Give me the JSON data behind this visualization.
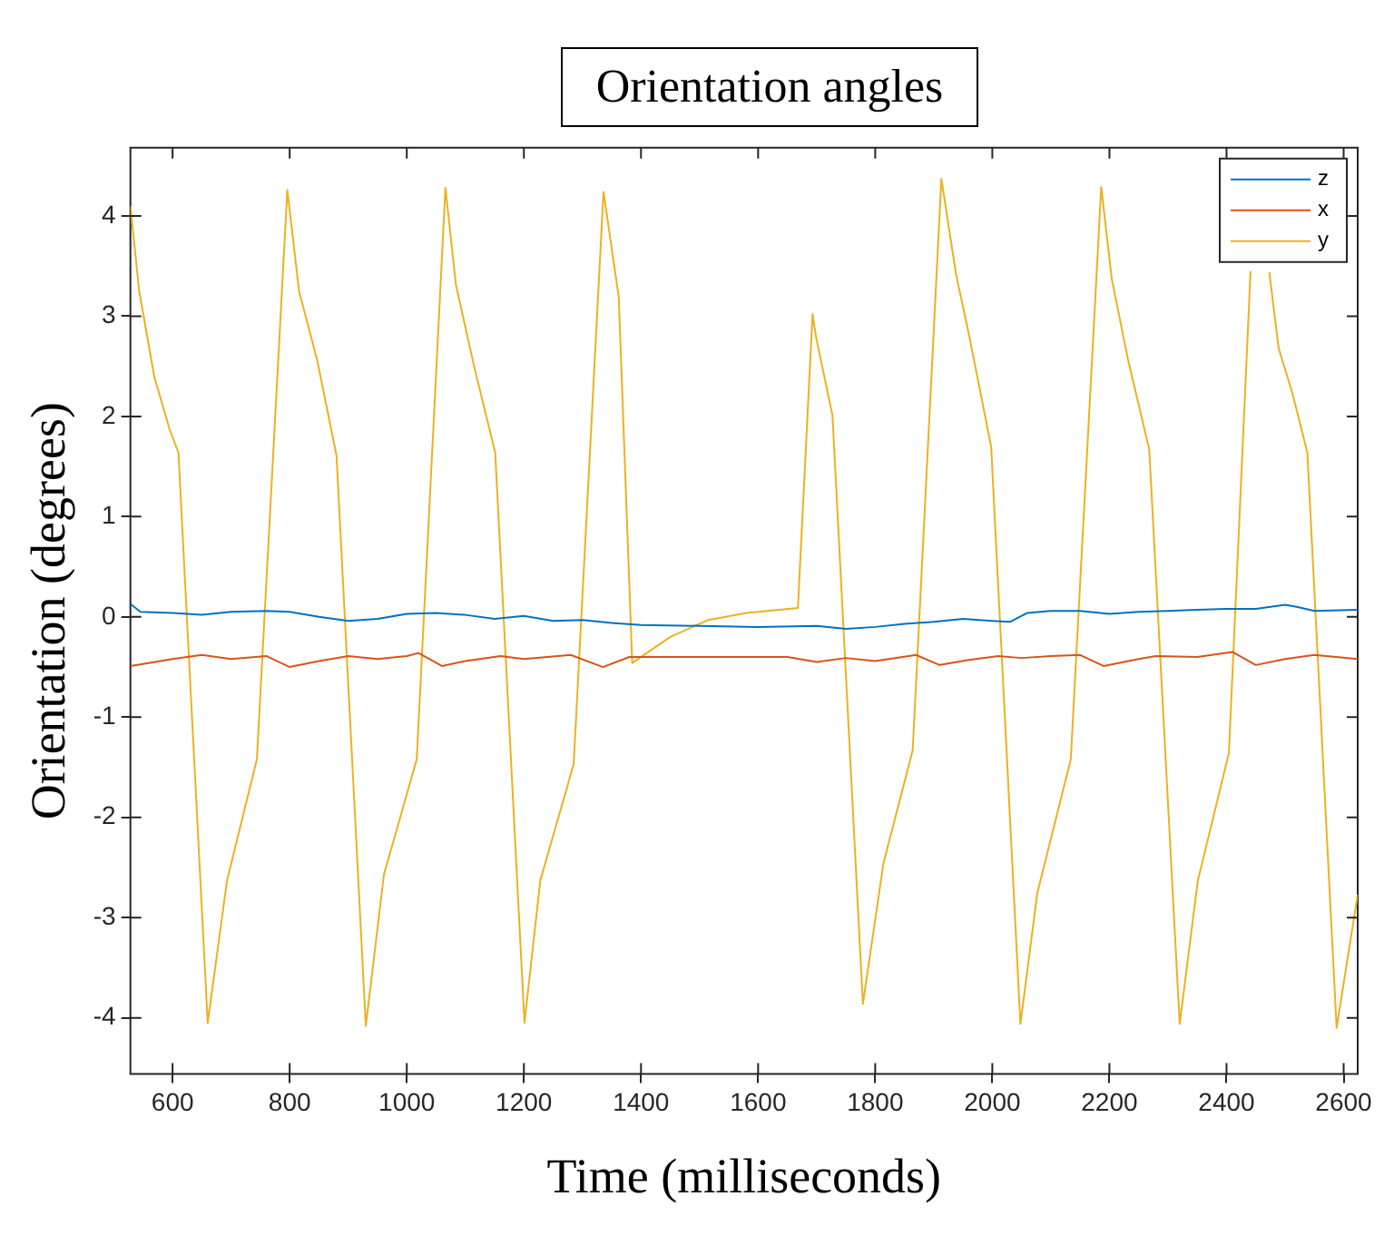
{
  "chart_data": {
    "type": "line",
    "title": "Orientation angles",
    "xlabel": "Time (milliseconds)",
    "ylabel": "Orientation (degrees)",
    "xlim": [
      528,
      2624
    ],
    "xticks": [
      600,
      800,
      1000,
      1200,
      1400,
      1600,
      1800,
      2000,
      2200,
      2400,
      2600
    ],
    "ylim": [
      -4.56,
      4.68
    ],
    "yticks": [
      -4,
      -3,
      -2,
      -1,
      0,
      1,
      2,
      3,
      4
    ],
    "grid": false,
    "legend": "top right",
    "marker": "none",
    "line_style": "solid",
    "series": [
      {
        "name": "z",
        "color": "#0072bd",
        "x": [
          528,
          545,
          600,
          650,
          700,
          760,
          800,
          850,
          900,
          950,
          1000,
          1050,
          1100,
          1150,
          1200,
          1250,
          1300,
          1350,
          1400,
          1500,
          1600,
          1700,
          1750,
          1800,
          1850,
          1900,
          1950,
          2000,
          2030,
          2060,
          2100,
          2150,
          2200,
          2250,
          2300,
          2350,
          2400,
          2450,
          2500,
          2520,
          2550,
          2624
        ],
        "values": [
          0.13,
          0.05,
          0.04,
          0.02,
          0.05,
          0.06,
          0.05,
          0.0,
          -0.04,
          -0.02,
          0.03,
          0.04,
          0.02,
          -0.02,
          0.01,
          -0.04,
          -0.03,
          -0.06,
          -0.08,
          -0.09,
          -0.1,
          -0.09,
          -0.12,
          -0.1,
          -0.07,
          -0.05,
          -0.02,
          -0.04,
          -0.05,
          0.04,
          0.06,
          0.06,
          0.03,
          0.05,
          0.06,
          0.07,
          0.08,
          0.08,
          0.12,
          0.1,
          0.06,
          0.07
        ]
      },
      {
        "name": "x",
        "color": "#d95319",
        "x": [
          528,
          600,
          650,
          700,
          760,
          800,
          850,
          900,
          950,
          1000,
          1020,
          1060,
          1100,
          1160,
          1200,
          1280,
          1335,
          1380,
          1450,
          1550,
          1650,
          1700,
          1750,
          1800,
          1870,
          1910,
          1960,
          2010,
          2050,
          2100,
          2150,
          2190,
          2250,
          2280,
          2350,
          2410,
          2450,
          2500,
          2550,
          2624
        ],
        "values": [
          -0.49,
          -0.42,
          -0.38,
          -0.42,
          -0.39,
          -0.5,
          -0.44,
          -0.39,
          -0.42,
          -0.39,
          -0.36,
          -0.49,
          -0.44,
          -0.39,
          -0.42,
          -0.38,
          -0.5,
          -0.4,
          -0.4,
          -0.4,
          -0.4,
          -0.45,
          -0.41,
          -0.44,
          -0.38,
          -0.48,
          -0.43,
          -0.39,
          -0.41,
          -0.39,
          -0.38,
          -0.49,
          -0.42,
          -0.39,
          -0.4,
          -0.35,
          -0.48,
          -0.42,
          -0.38,
          -0.42
        ]
      },
      {
        "name": "y",
        "color": "#edb120",
        "x": [
          528,
          543,
          569,
          595,
          610,
          660,
          693,
          744,
          796,
          816,
          847,
          880,
          930,
          961,
          1017,
          1066,
          1084,
          1115,
          1151,
          1201,
          1228,
          1285,
          1336,
          1362,
          1385,
          1450,
          1515,
          1580,
          1668,
          1693,
          1699,
          1727,
          1779,
          1814,
          1864,
          1913,
          1938,
          1961,
          1998,
          2048,
          2077,
          2134,
          2186,
          2204,
          2232,
          2268,
          2320,
          2351,
          2404,
          2441,
          2460,
          2473,
          2489,
          2513,
          2538,
          2588,
          2624
        ],
        "values": [
          4.1,
          3.25,
          2.39,
          1.87,
          1.64,
          -4.05,
          -2.63,
          -1.42,
          4.26,
          3.25,
          2.56,
          1.61,
          -4.08,
          -2.57,
          -1.42,
          4.28,
          3.31,
          2.5,
          1.64,
          -4.05,
          -2.63,
          -1.47,
          4.24,
          3.19,
          -0.46,
          -0.2,
          -0.03,
          0.04,
          0.09,
          3.02,
          2.79,
          2.01,
          -3.86,
          -2.46,
          -1.33,
          4.37,
          3.42,
          2.79,
          1.7,
          -4.06,
          -2.75,
          -1.42,
          4.29,
          3.37,
          2.56,
          1.67,
          -4.06,
          -2.63,
          -1.36,
          3.45,
          null,
          3.44,
          2.68,
          2.22,
          1.64,
          -4.1,
          -2.77
        ]
      }
    ]
  }
}
